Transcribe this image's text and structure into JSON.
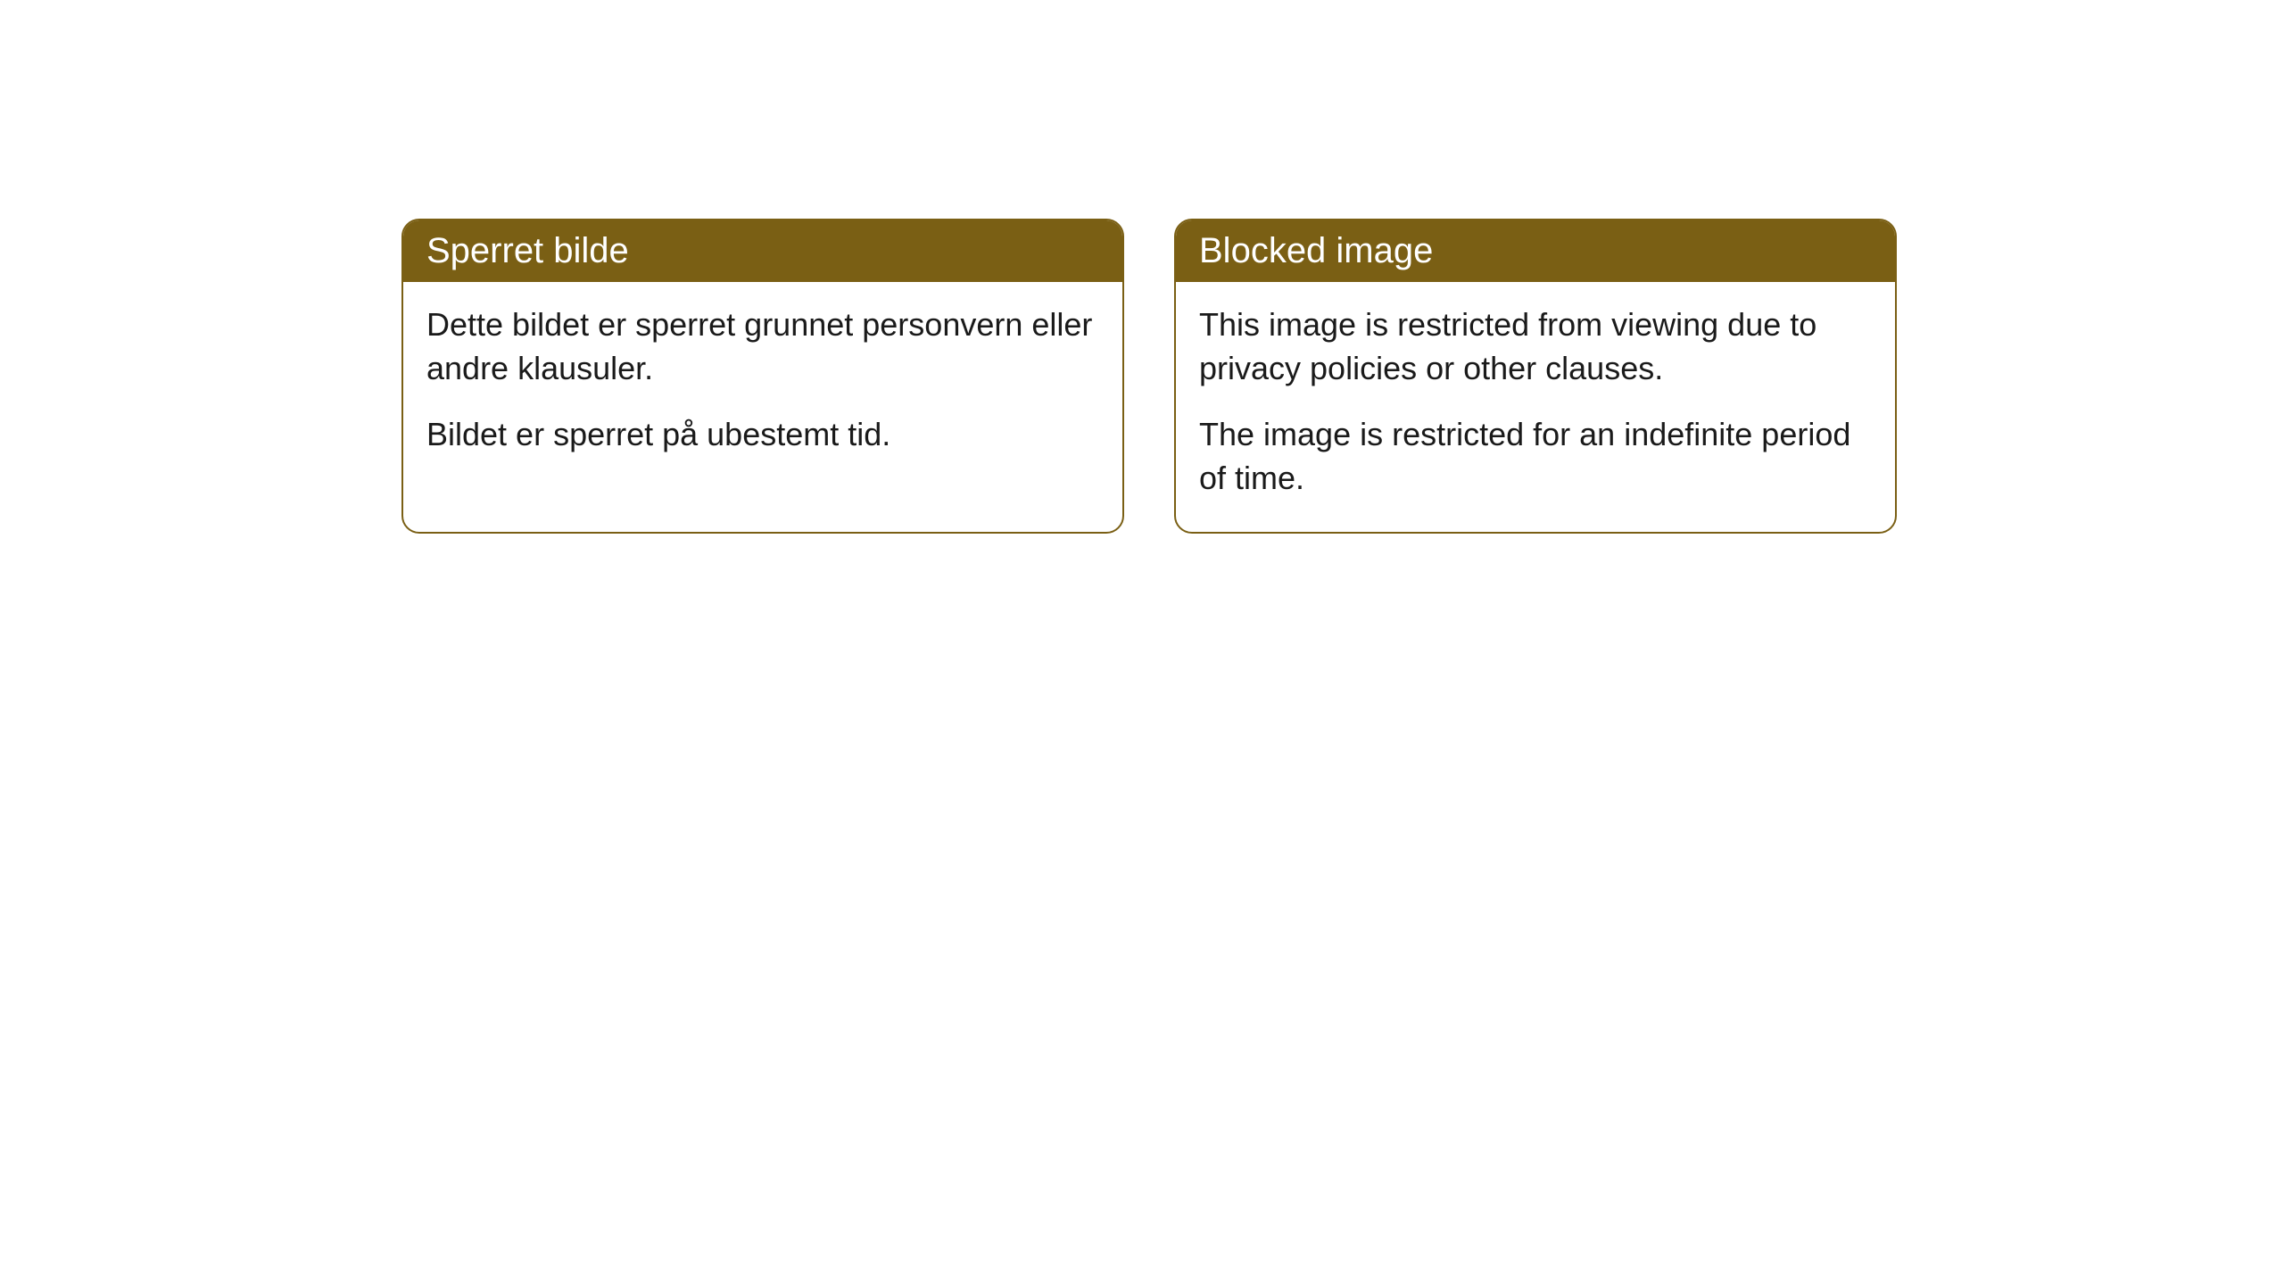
{
  "cards": [
    {
      "title": "Sperret bilde",
      "paragraph1": "Dette bildet er sperret grunnet personvern eller andre klausuler.",
      "paragraph2": "Bildet er sperret på ubestemt tid."
    },
    {
      "title": "Blocked image",
      "paragraph1": "This image is restricted from viewing due to privacy policies or other clauses.",
      "paragraph2": "The image is restricted for an indefinite period of time."
    }
  ],
  "styling": {
    "header_background": "#7a5f14",
    "header_text_color": "#ffffff",
    "border_color": "#7a5f14",
    "card_background": "#ffffff",
    "body_text_color": "#1a1a1a",
    "border_radius": 20,
    "title_fontsize": 40,
    "body_fontsize": 36
  }
}
